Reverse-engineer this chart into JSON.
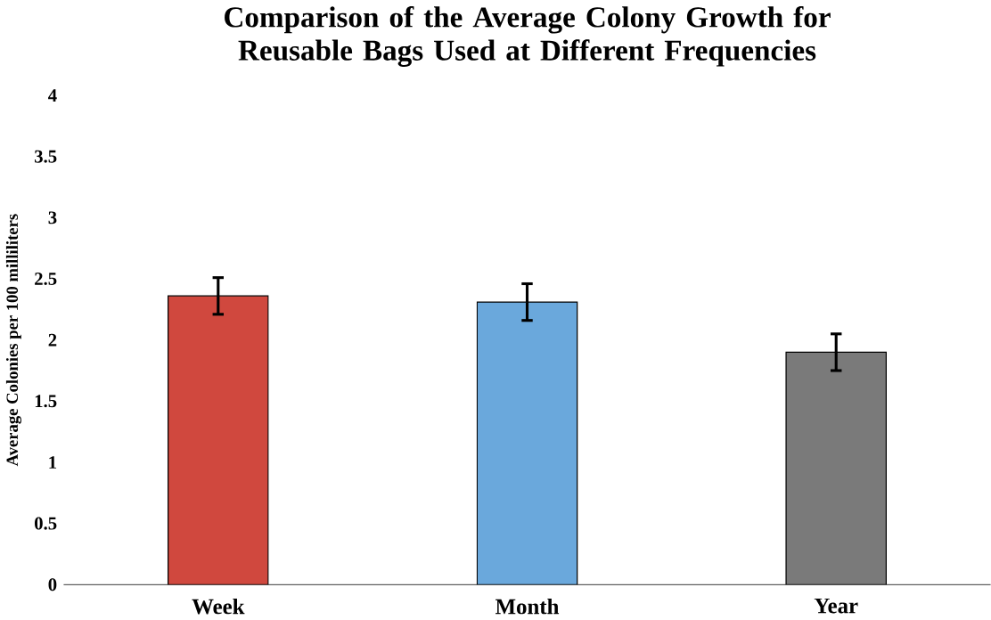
{
  "chart_data": {
    "type": "bar",
    "title": "Comparison of the Average Colony Growth for Reusable Bags Used at Different Frequencies",
    "ylabel": "Average Colonies per 100 milliliters",
    "categories": [
      "Week",
      "Month",
      "Year"
    ],
    "values": [
      2.36,
      2.31,
      1.9
    ],
    "errors": [
      0.15,
      0.15,
      0.15
    ],
    "colors": [
      "#d0483e",
      "#6aa8dc",
      "#7a7a7a"
    ],
    "ylim": [
      0,
      4
    ],
    "yticks": [
      0,
      0.5,
      1,
      1.5,
      2,
      2.5,
      3,
      3.5,
      4
    ],
    "grid": false
  }
}
